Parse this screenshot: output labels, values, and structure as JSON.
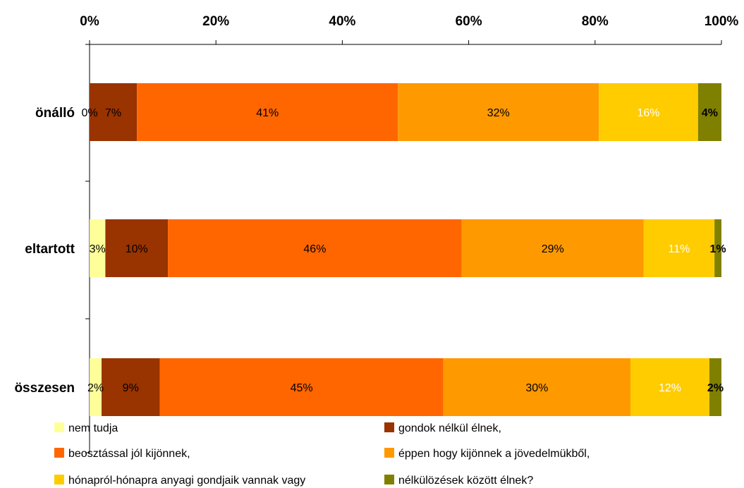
{
  "chart_data": {
    "type": "bar",
    "orientation": "horizontal",
    "stacked": "percent",
    "x_axis_position": "top",
    "xlim": [
      0,
      100
    ],
    "x_ticks": [
      "0%",
      "20%",
      "40%",
      "60%",
      "80%",
      "100%"
    ],
    "categories": [
      "önálló",
      "eltartott",
      "összesen"
    ],
    "series": [
      {
        "name": "nem tudja",
        "color": "#FFFF99",
        "label_color": "#000000",
        "label_bold": false,
        "values": [
          0,
          2.5,
          1.9
        ],
        "labels": [
          "0%",
          "3%",
          "2%"
        ]
      },
      {
        "name": "gondok nélkül élnek,",
        "color": "#993300",
        "label_color": "#000000",
        "label_bold": false,
        "values": [
          7.5,
          9.9,
          9.2
        ],
        "labels": [
          "7%",
          "10%",
          "9%"
        ]
      },
      {
        "name": "beosztással jól kijönnek,",
        "color": "#FF6600",
        "label_color": "#000000",
        "label_bold": false,
        "values": [
          41.3,
          46.5,
          44.9
        ],
        "labels": [
          "41%",
          "46%",
          "45%"
        ]
      },
      {
        "name": "éppen hogy kijönnek a jövedelmükből,",
        "color": "#FF9900",
        "label_color": "#000000",
        "label_bold": false,
        "values": [
          31.8,
          28.8,
          29.6
        ],
        "labels": [
          "32%",
          "29%",
          "30%"
        ]
      },
      {
        "name": "hónapról-hónapra anyagi gondjaik vannak vagy",
        "color": "#FFCC00",
        "label_color": "#FFFFFF",
        "label_bold": false,
        "values": [
          15.7,
          11.2,
          12.5
        ],
        "labels": [
          "16%",
          "11%",
          "12%"
        ]
      },
      {
        "name": "nélkülözések között élnek?",
        "color": "#808000",
        "label_color": "#000000",
        "label_bold": true,
        "values": [
          3.7,
          1.1,
          1.9
        ],
        "labels": [
          "4%",
          "1%",
          "2%"
        ]
      }
    ],
    "legend_position": "bottom",
    "grid": false
  }
}
